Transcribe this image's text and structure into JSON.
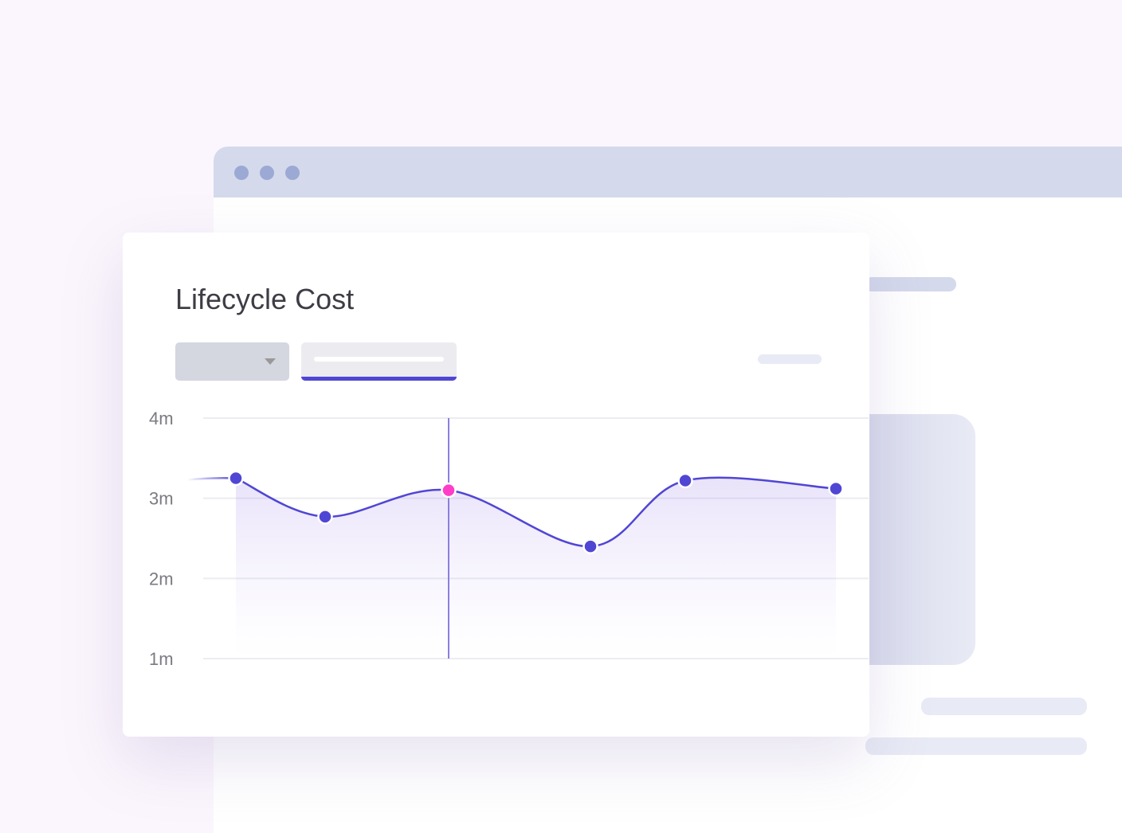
{
  "chart_data": {
    "type": "line",
    "title": "Lifecycle Cost",
    "categories": [
      null,
      null,
      null,
      null,
      null,
      null
    ],
    "series": [
      {
        "color": "#5046d4",
        "values": [
          3.25,
          2.77,
          3.1,
          2.4,
          3.22,
          3.12
        ]
      }
    ],
    "highlight": 2,
    "highlight_color": "#ff3dc8",
    "ylim": [
      1,
      4
    ],
    "yticks": [
      {
        "value": 1,
        "label": "1m"
      },
      {
        "value": 2,
        "label": "2m"
      },
      {
        "value": 3,
        "label": "3m"
      },
      {
        "value": 4,
        "label": "4m"
      }
    ],
    "grid": true
  }
}
